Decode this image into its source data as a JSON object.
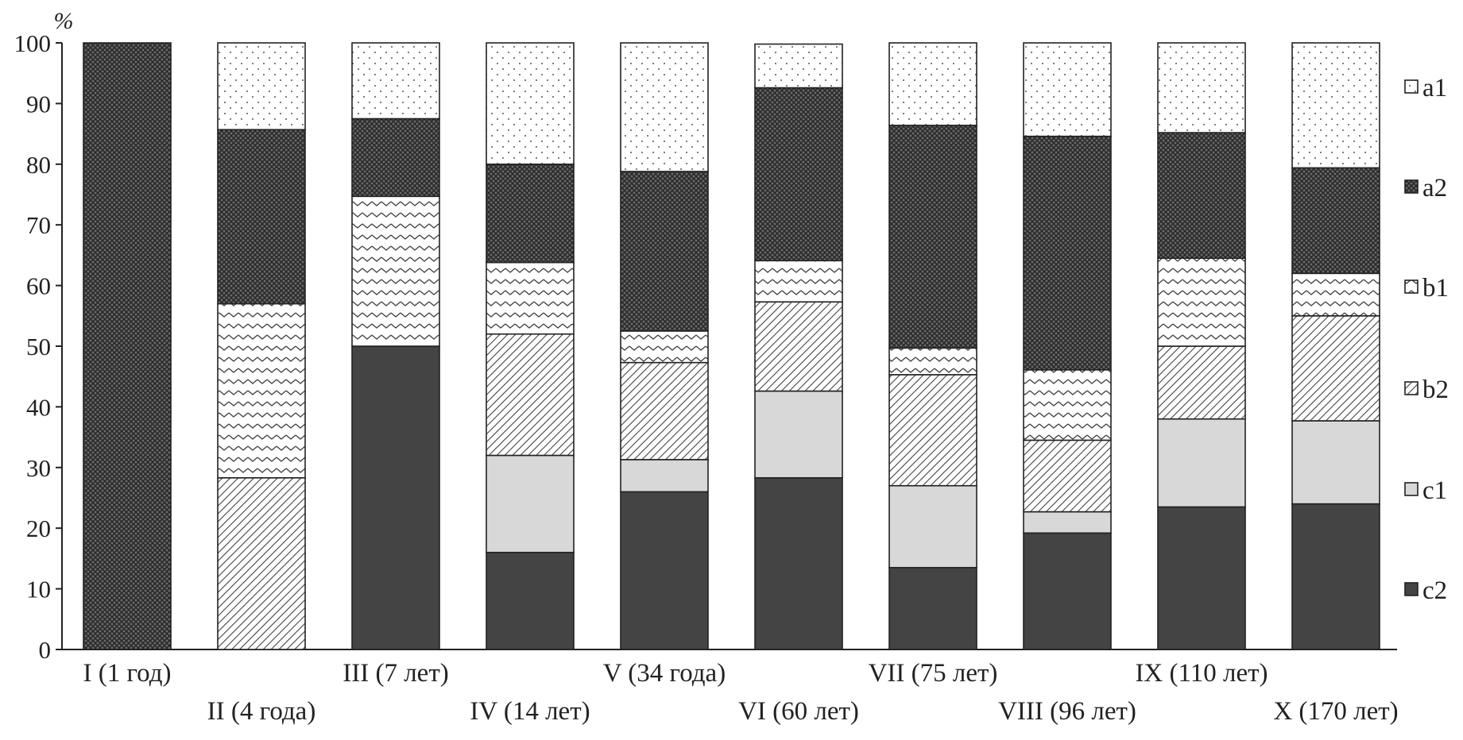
{
  "chart_data": {
    "type": "bar",
    "stacked": true,
    "y_unit": "%",
    "ylim": [
      0,
      100
    ],
    "yticks": [
      0,
      10,
      20,
      30,
      40,
      50,
      60,
      70,
      80,
      90,
      100
    ],
    "grid": false,
    "legend_position": "right",
    "categories": [
      "I (1 год)",
      "II (4 года)",
      "III (7 лет)",
      "IV (14 лет)",
      "V (34 года)",
      "VI (60 лет)",
      "VII (75 лет)",
      "VIII (96 лет)",
      "IX (110 лет)",
      "X (170 лет)"
    ],
    "series": [
      {
        "name": "c2",
        "values": [
          0,
          0,
          50,
          16,
          26,
          28.3,
          13.5,
          19.2,
          23.5,
          24
        ]
      },
      {
        "name": "c1",
        "values": [
          0,
          0,
          0,
          16,
          5.3,
          14.3,
          13.5,
          3.5,
          14.5,
          13.7
        ]
      },
      {
        "name": "b2",
        "values": [
          0,
          28.3,
          0,
          20,
          16,
          14.7,
          18.3,
          11.8,
          12,
          17.3
        ]
      },
      {
        "name": "b1",
        "values": [
          0,
          28.7,
          24.7,
          11.8,
          5.2,
          6.8,
          4.4,
          11.6,
          14.5,
          7
        ]
      },
      {
        "name": "a2",
        "values": [
          100,
          28.7,
          12.8,
          16.2,
          26.3,
          28.5,
          36.7,
          38.5,
          20.7,
          17.4
        ]
      },
      {
        "name": "a1",
        "values": [
          0,
          14.3,
          12.5,
          20,
          21.2,
          7.2,
          13.6,
          15.4,
          14.8,
          20.6
        ]
      }
    ],
    "legend_order": [
      "a1",
      "a2",
      "b1",
      "b2",
      "c1",
      "c2"
    ]
  }
}
